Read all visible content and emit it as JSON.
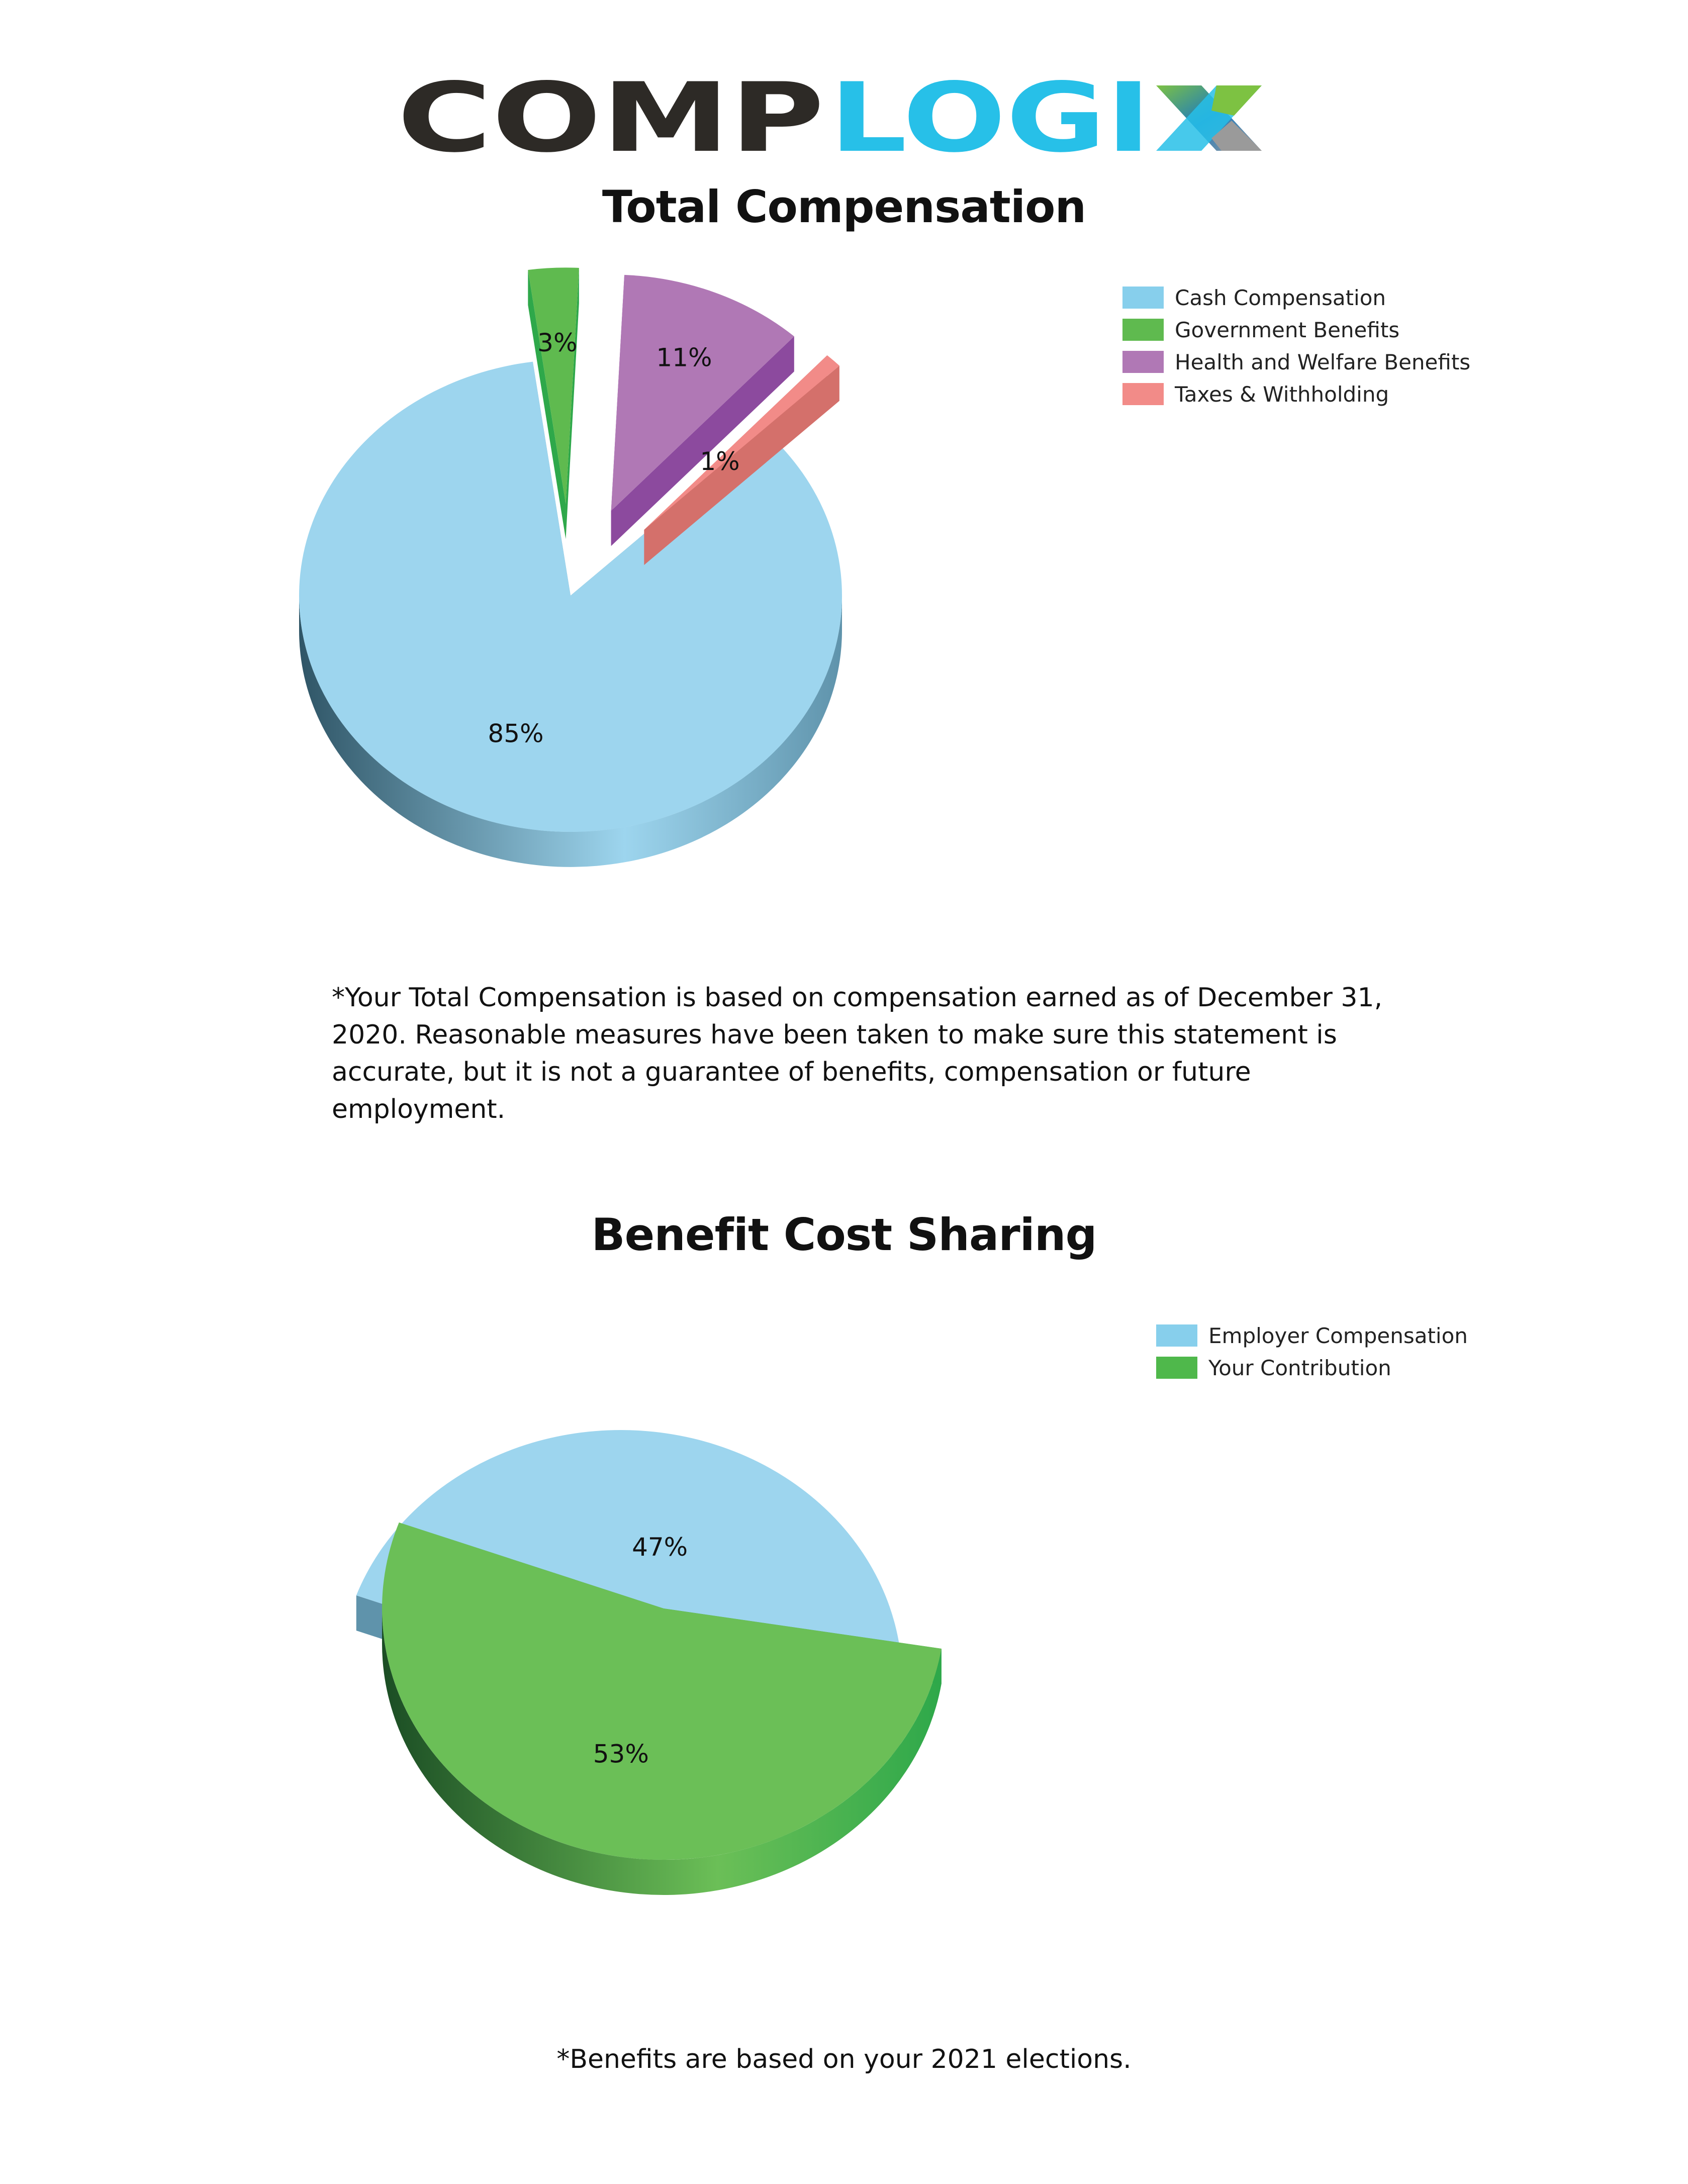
{
  "brand": {
    "logo_text_dark": "COMP",
    "logo_text_light": "LOGI",
    "logo_text_x": "X",
    "dark_color": "#2d2a26",
    "light_color": "#27c0e8",
    "x_colors": [
      "#7dc242",
      "#1e7bbf",
      "#9a9a9a"
    ]
  },
  "chart_data": [
    {
      "type": "pie",
      "title": "Total Compensation",
      "legend_position": "top-right",
      "slices": [
        {
          "name": "Cash Compensation",
          "value": 85,
          "label": "85%",
          "color": "#9dd5ee",
          "side": "#5f93ab",
          "dark": "#2f5566"
        },
        {
          "name": "Government Benefits",
          "value": 3,
          "label": "3%",
          "color": "#5fba4f",
          "side": "#2ea84a",
          "dark": "#1b6b2d"
        },
        {
          "name": "Health and Welfare Benefits",
          "value": 11,
          "label": "11%",
          "color": "#b078b5",
          "side": "#8c4a9e",
          "dark": "#3c1a44"
        },
        {
          "name": "Taxes & Withholding",
          "value": 1,
          "label": "1%",
          "color": "#f28b88",
          "side": "#d4706b",
          "dark": "#7a3431"
        }
      ]
    },
    {
      "type": "pie",
      "title": "Benefit Cost Sharing",
      "legend_position": "top-right",
      "slices": [
        {
          "name": "Employer Compensation",
          "value": 47,
          "label": "47%",
          "color": "#9dd5ee",
          "side": "#5f93ab",
          "dark": "#2f5566"
        },
        {
          "name": "Your Contribution",
          "value": 53,
          "label": "53%",
          "color": "#6bbf57",
          "side": "#2ea84a",
          "dark": "#1b4d24"
        }
      ]
    }
  ],
  "notes": {
    "total_comp_lines": [
      "*Your Total Compensation is based on compensation earned as of December 31,",
      "2020. Reasonable measures have been taken to make sure this statement is",
      "accurate, but it is not a guarantee of benefits, compensation or future",
      "employment."
    ],
    "benefits": "*Benefits are based on your 2021 elections."
  }
}
